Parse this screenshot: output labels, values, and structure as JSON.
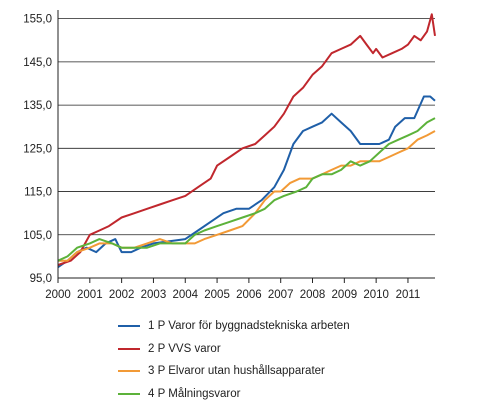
{
  "chart_data": {
    "type": "line",
    "title": "",
    "xlabel": "",
    "ylabel": "",
    "xlim": [
      2000,
      2011.85
    ],
    "ylim": [
      95,
      157
    ],
    "x_ticks": [
      "2000",
      "2001",
      "2002",
      "2003",
      "2004",
      "2005",
      "2006",
      "2007",
      "2008",
      "2009",
      "2010",
      "2011"
    ],
    "y_ticks": [
      "95,0",
      "105,0",
      "115,0",
      "125,0",
      "135,0",
      "145,0",
      "155,0"
    ],
    "y_tick_values": [
      95,
      105,
      115,
      125,
      135,
      145,
      155
    ],
    "grid": "horizontal",
    "legend_position": "bottom",
    "series": [
      {
        "name": "1 P Varor för byggnadstekniska arbeten",
        "color": "#1f5fa8",
        "points": [
          [
            2000,
            97.5
          ],
          [
            2000.3,
            99
          ],
          [
            2000.6,
            101
          ],
          [
            2000.9,
            102
          ],
          [
            2001.2,
            101
          ],
          [
            2001.5,
            103
          ],
          [
            2001.8,
            104
          ],
          [
            2002,
            101
          ],
          [
            2002.3,
            101
          ],
          [
            2002.6,
            102
          ],
          [
            2003,
            103
          ],
          [
            2003.5,
            103.5
          ],
          [
            2004,
            104
          ],
          [
            2004.4,
            106
          ],
          [
            2004.8,
            108
          ],
          [
            2005.2,
            110
          ],
          [
            2005.6,
            111
          ],
          [
            2006,
            111
          ],
          [
            2006.4,
            113
          ],
          [
            2006.8,
            116
          ],
          [
            2007.1,
            120
          ],
          [
            2007.4,
            126
          ],
          [
            2007.7,
            129
          ],
          [
            2008.0,
            130
          ],
          [
            2008.3,
            131
          ],
          [
            2008.6,
            133
          ],
          [
            2008.9,
            131
          ],
          [
            2009.2,
            129
          ],
          [
            2009.5,
            126
          ],
          [
            2009.8,
            126
          ],
          [
            2010.1,
            126
          ],
          [
            2010.4,
            127
          ],
          [
            2010.6,
            130
          ],
          [
            2010.9,
            132
          ],
          [
            2011.2,
            132
          ],
          [
            2011.5,
            137
          ],
          [
            2011.7,
            137
          ],
          [
            2011.85,
            136
          ]
        ]
      },
      {
        "name": "2 P VVS varor",
        "color": "#c0272d",
        "points": [
          [
            2000,
            98
          ],
          [
            2000.4,
            99
          ],
          [
            2000.7,
            101
          ],
          [
            2001,
            105
          ],
          [
            2001.3,
            106
          ],
          [
            2001.6,
            107
          ],
          [
            2002,
            109
          ],
          [
            2002.4,
            110
          ],
          [
            2002.8,
            111
          ],
          [
            2003.2,
            112
          ],
          [
            2003.6,
            113
          ],
          [
            2004,
            114
          ],
          [
            2004.4,
            116
          ],
          [
            2004.8,
            118
          ],
          [
            2005,
            121
          ],
          [
            2005.4,
            123
          ],
          [
            2005.8,
            125
          ],
          [
            2006.2,
            126
          ],
          [
            2006.5,
            128
          ],
          [
            2006.8,
            130
          ],
          [
            2007.1,
            133
          ],
          [
            2007.4,
            137
          ],
          [
            2007.7,
            139
          ],
          [
            2008,
            142
          ],
          [
            2008.3,
            144
          ],
          [
            2008.6,
            147
          ],
          [
            2008.9,
            148
          ],
          [
            2009.2,
            149
          ],
          [
            2009.5,
            151
          ],
          [
            2009.7,
            149
          ],
          [
            2009.9,
            147
          ],
          [
            2010.0,
            148
          ],
          [
            2010.2,
            146
          ],
          [
            2010.5,
            147
          ],
          [
            2010.8,
            148
          ],
          [
            2011.0,
            149
          ],
          [
            2011.2,
            151
          ],
          [
            2011.4,
            150
          ],
          [
            2011.6,
            152
          ],
          [
            2011.75,
            156
          ],
          [
            2011.85,
            151
          ]
        ]
      },
      {
        "name": "3 P Elvaror utan hushållsapparater",
        "color": "#f29a36",
        "points": [
          [
            2000,
            99
          ],
          [
            2000.3,
            99
          ],
          [
            2000.6,
            101
          ],
          [
            2001,
            102
          ],
          [
            2001.3,
            103
          ],
          [
            2001.7,
            103
          ],
          [
            2002,
            102
          ],
          [
            2002.4,
            102
          ],
          [
            2002.8,
            103
          ],
          [
            2003.2,
            104
          ],
          [
            2003.6,
            103
          ],
          [
            2004,
            103
          ],
          [
            2004.3,
            103
          ],
          [
            2004.6,
            104
          ],
          [
            2005,
            105
          ],
          [
            2005.4,
            106
          ],
          [
            2005.8,
            107
          ],
          [
            2006.2,
            110
          ],
          [
            2006.5,
            113
          ],
          [
            2006.8,
            115
          ],
          [
            2007,
            115
          ],
          [
            2007.3,
            117
          ],
          [
            2007.6,
            118
          ],
          [
            2008,
            118
          ],
          [
            2008.3,
            119
          ],
          [
            2008.6,
            120
          ],
          [
            2008.9,
            121
          ],
          [
            2009.2,
            121
          ],
          [
            2009.5,
            122
          ],
          [
            2009.8,
            122
          ],
          [
            2010.1,
            122
          ],
          [
            2010.4,
            123
          ],
          [
            2010.7,
            124
          ],
          [
            2011,
            125
          ],
          [
            2011.3,
            127
          ],
          [
            2011.6,
            128
          ],
          [
            2011.85,
            129
          ]
        ]
      },
      {
        "name": "4 P Målningsvaror",
        "color": "#5cb23a",
        "points": [
          [
            2000,
            99
          ],
          [
            2000.3,
            100
          ],
          [
            2000.6,
            102
          ],
          [
            2001,
            103
          ],
          [
            2001.3,
            104
          ],
          [
            2001.7,
            103
          ],
          [
            2002,
            102
          ],
          [
            2002.4,
            102
          ],
          [
            2002.8,
            102
          ],
          [
            2003.2,
            103
          ],
          [
            2003.6,
            103
          ],
          [
            2004,
            103
          ],
          [
            2004.3,
            105
          ],
          [
            2004.6,
            106
          ],
          [
            2005,
            107
          ],
          [
            2005.4,
            108
          ],
          [
            2005.8,
            109
          ],
          [
            2006.2,
            110
          ],
          [
            2006.5,
            111
          ],
          [
            2006.8,
            113
          ],
          [
            2007.1,
            114
          ],
          [
            2007.5,
            115
          ],
          [
            2007.8,
            116
          ],
          [
            2008,
            118
          ],
          [
            2008.3,
            119
          ],
          [
            2008.6,
            119
          ],
          [
            2008.9,
            120
          ],
          [
            2009.2,
            122
          ],
          [
            2009.5,
            121
          ],
          [
            2009.8,
            122
          ],
          [
            2010.1,
            124
          ],
          [
            2010.4,
            126
          ],
          [
            2010.7,
            127
          ],
          [
            2011,
            128
          ],
          [
            2011.3,
            129
          ],
          [
            2011.6,
            131
          ],
          [
            2011.85,
            132
          ]
        ]
      }
    ]
  }
}
